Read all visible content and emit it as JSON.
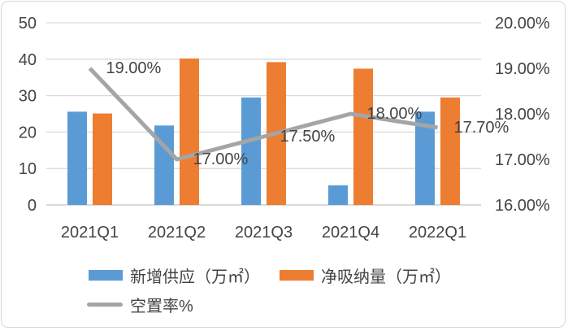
{
  "chart_data": {
    "type": "combo",
    "title": "",
    "categories": [
      "2021Q1",
      "2021Q2",
      "2021Q3",
      "2021Q4",
      "2022Q1"
    ],
    "series": [
      {
        "name": "新增供应（万㎡）",
        "type": "bar",
        "color": "#5B9BD5",
        "axis": "left",
        "values": [
          25.6,
          21.8,
          29.5,
          5.4,
          25.6
        ]
      },
      {
        "name": "净吸纳量（万㎡）",
        "type": "bar",
        "color": "#ED7D31",
        "axis": "left",
        "values": [
          25.1,
          40.2,
          39.2,
          37.4,
          29.5
        ]
      },
      {
        "name": "空置率%",
        "type": "line",
        "color": "#A5A5A5",
        "axis": "right",
        "values": [
          19.0,
          17.0,
          17.5,
          18.0,
          17.7
        ],
        "point_labels": [
          "19.00%",
          "17.00%",
          "17.50%",
          "18.00%",
          "17.70%"
        ]
      }
    ],
    "left_axis": {
      "min": 0,
      "max": 50,
      "step": 10,
      "ticks": [
        "0",
        "10",
        "20",
        "30",
        "40",
        "50"
      ]
    },
    "right_axis": {
      "min": 16,
      "max": 20,
      "step": 1,
      "ticks": [
        "16.00%",
        "17.00%",
        "18.00%",
        "19.00%",
        "20.00%"
      ]
    },
    "grid": true,
    "legend_position": "bottom"
  },
  "colors": {
    "grid": "#D9D9D9",
    "axis_line": "#D9D9D9",
    "text": "#444444",
    "background": "#FFFFFF",
    "frame_border": "#D8D8D8"
  }
}
